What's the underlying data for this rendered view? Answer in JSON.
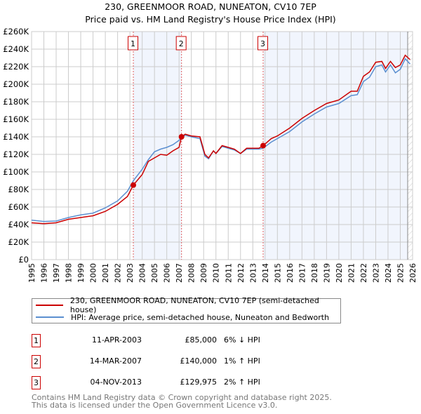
{
  "chart_data": {
    "type": "line",
    "title": "230, GREENMOOR ROAD, NUNEATON, CV10 7EP",
    "subtitle": "Price paid vs. HM Land Registry's House Price Index (HPI)",
    "xlim": [
      1995,
      2026
    ],
    "ylim": [
      0,
      260000
    ],
    "x_ticks": [
      "1995",
      "1996",
      "1997",
      "1998",
      "1999",
      "2000",
      "2001",
      "2002",
      "2003",
      "2004",
      "2005",
      "2006",
      "2007",
      "2008",
      "2009",
      "2010",
      "2011",
      "2012",
      "2013",
      "2014",
      "2015",
      "2016",
      "2017",
      "2018",
      "2019",
      "2020",
      "2021",
      "2022",
      "2023",
      "2024",
      "2025",
      "2026"
    ],
    "y_ticks": [
      {
        "v": 0,
        "l": "£0"
      },
      {
        "v": 20000,
        "l": "£20K"
      },
      {
        "v": 40000,
        "l": "£40K"
      },
      {
        "v": 60000,
        "l": "£60K"
      },
      {
        "v": 80000,
        "l": "£80K"
      },
      {
        "v": 100000,
        "l": "£100K"
      },
      {
        "v": 120000,
        "l": "£120K"
      },
      {
        "v": 140000,
        "l": "£140K"
      },
      {
        "v": 160000,
        "l": "£160K"
      },
      {
        "v": 180000,
        "l": "£180K"
      },
      {
        "v": 200000,
        "l": "£200K"
      },
      {
        "v": 220000,
        "l": "£220K"
      },
      {
        "v": 240000,
        "l": "£240K"
      },
      {
        "v": 260000,
        "l": "£260K"
      }
    ],
    "grid": true,
    "series": [
      {
        "name": "230, GREENMOOR ROAD, NUNEATON, CV10 7EP (semi-detached house)",
        "color": "#cc0000",
        "x": [
          1995,
          1996,
          1997,
          1998,
          1999,
          2000,
          2001,
          2002,
          2002.8,
          2003.28,
          2004,
          2004.5,
          2005,
          2005.5,
          2006,
          2006.5,
          2007,
          2007.2,
          2007.5,
          2008,
          2008.7,
          2009.1,
          2009.4,
          2009.8,
          2010,
          2010.5,
          2011,
          2011.5,
          2012,
          2012.5,
          2013,
          2013.5,
          2013.84,
          2014.5,
          2015,
          2016,
          2017,
          2018,
          2019,
          2020,
          2021,
          2021.5,
          2022,
          2022.5,
          2023,
          2023.5,
          2023.8,
          2024.2,
          2024.6,
          2025,
          2025.4,
          2025.8
        ],
        "y": [
          42000,
          41000,
          42000,
          46000,
          48000,
          50000,
          55000,
          63000,
          72000,
          85000,
          97000,
          112000,
          116000,
          120000,
          119000,
          124000,
          128000,
          140000,
          143000,
          141000,
          140000,
          120000,
          116000,
          124000,
          121000,
          130000,
          128000,
          126000,
          121000,
          127000,
          127000,
          127000,
          129975,
          138000,
          141000,
          150000,
          161000,
          170000,
          178000,
          182000,
          192000,
          192000,
          209000,
          214000,
          225000,
          226000,
          218000,
          226000,
          219000,
          222000,
          233000,
          228000
        ]
      },
      {
        "name": "HPI: Average price, semi-detached house, Nuneaton and Bedworth",
        "color": "#5b8fd0",
        "x": [
          1995,
          1996,
          1997,
          1998,
          1999,
          2000,
          2001,
          2002,
          2002.8,
          2003.28,
          2004,
          2004.5,
          2005,
          2005.5,
          2006,
          2006.5,
          2007,
          2007.2,
          2007.5,
          2008,
          2008.7,
          2009.1,
          2009.4,
          2009.8,
          2010,
          2010.5,
          2011,
          2011.5,
          2012,
          2012.5,
          2013,
          2013.5,
          2013.84,
          2014.5,
          2015,
          2016,
          2017,
          2018,
          2019,
          2020,
          2021,
          2021.5,
          2022,
          2022.5,
          2023,
          2023.5,
          2023.8,
          2024.2,
          2024.6,
          2025,
          2025.4,
          2025.8
        ],
        "y": [
          45000,
          43500,
          44000,
          48000,
          51000,
          53000,
          59000,
          67000,
          78000,
          90000,
          103000,
          114000,
          123000,
          126000,
          128000,
          131000,
          136000,
          139000,
          142000,
          140000,
          138000,
          118000,
          115000,
          124000,
          121000,
          129000,
          127000,
          125000,
          121000,
          126000,
          126000,
          126000,
          127000,
          134000,
          138000,
          146000,
          157000,
          166000,
          174000,
          178000,
          187000,
          188000,
          203000,
          208000,
          220000,
          222000,
          214000,
          222000,
          213000,
          217000,
          229000,
          223000
        ]
      }
    ],
    "sales": [
      {
        "n": "1",
        "x": 2003.28,
        "y": 85000,
        "date": "11-APR-2003",
        "price": "£85,000",
        "hpi": "6% ↓ HPI"
      },
      {
        "n": "2",
        "x": 2007.2,
        "y": 140000,
        "date": "14-MAR-2007",
        "price": "£140,000",
        "hpi": "1% ↑ HPI"
      },
      {
        "n": "3",
        "x": 2013.84,
        "y": 129975,
        "date": "04-NOV-2013",
        "price": "£129,975",
        "hpi": "2% ↑ HPI"
      }
    ],
    "data_end": 2025.6,
    "legend": "below"
  },
  "legend": {
    "property": "230, GREENMOOR ROAD, NUNEATON, CV10 7EP (semi-detached house)",
    "hpi": "HPI: Average price, semi-detached house, Nuneaton and Bedworth"
  },
  "footer": {
    "line1": "Contains HM Land Registry data © Crown copyright and database right 2025.",
    "line2": "This data is licensed under the Open Government Licence v3.0."
  }
}
